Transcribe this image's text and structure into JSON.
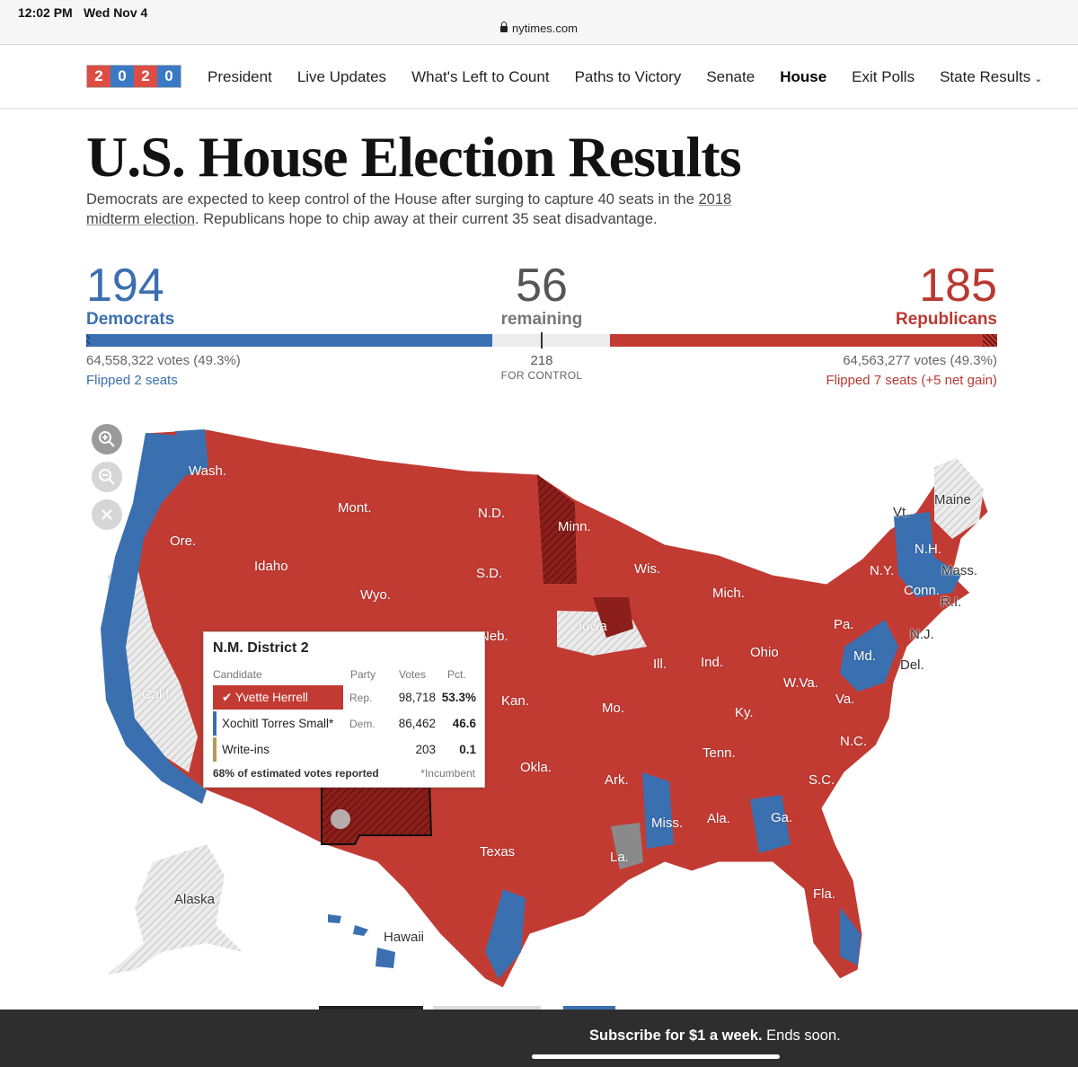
{
  "status_bar": {
    "time": "12:02 PM",
    "date": "Wed Nov 4",
    "url": "nytimes.com"
  },
  "nav": {
    "logo_digits": [
      "2",
      "0",
      "2",
      "0"
    ],
    "links": [
      "President",
      "Live Updates",
      "What's Left to Count",
      "Paths to Victory",
      "Senate",
      "House",
      "Exit Polls",
      "State Results"
    ],
    "active": "House"
  },
  "header": {
    "title": "U.S. House Election Results",
    "dek_1": "Democrats are expected to keep control of the House after surging to capture 40 seats in the ",
    "dek_link": "2018 midterm election",
    "dek_2": ". Republicans hope to chip away at their current 35 seat disadvantage."
  },
  "scoreboard": {
    "dem_seats": "194",
    "dem_label": "Democrats",
    "dem_votes": "64,558,322 votes (49.3%)",
    "dem_flipped": "Flipped 2 seats",
    "remaining": "56",
    "remaining_label": "remaining",
    "control_number": "218",
    "control_label": "FOR CONTROL",
    "rep_seats": "185",
    "rep_label": "Republicans",
    "rep_votes": "64,563,277 votes (49.3%)",
    "rep_flipped": "Flipped 7 seats (+5 net gain)",
    "total_seats": 435
  },
  "colors": {
    "dem": "#3a6fb0",
    "rep": "#c23b33",
    "uncalled": "#e2e2e2"
  },
  "map": {
    "labels": [
      "Wash.",
      "Ore.",
      "Calif.",
      "Idaho",
      "Mont.",
      "Wyo.",
      "N.D.",
      "S.D.",
      "Neb.",
      "Kan.",
      "Okla.",
      "Texas",
      "Minn.",
      "Iowa",
      "Mo.",
      "Ark.",
      "La.",
      "Wis.",
      "Ill.",
      "Mich.",
      "Ind.",
      "Ohio",
      "Ky.",
      "Tenn.",
      "Miss.",
      "Ala.",
      "Ga.",
      "Fla.",
      "S.C.",
      "N.C.",
      "Va.",
      "W.Va.",
      "Pa.",
      "N.Y.",
      "Vt.",
      "N.H.",
      "Maine",
      "Mass.",
      "R.I.",
      "Conn.",
      "N.J.",
      "Del.",
      "Md.",
      "Alaska",
      "Hawaii"
    ]
  },
  "tooltip": {
    "title": "N.M. District 2",
    "col_candidate": "Candidate",
    "col_party": "Party",
    "col_votes": "Votes",
    "col_pct": "Pct.",
    "rows": [
      {
        "name": "Yvette Herrell",
        "party": "Rep.",
        "votes": "98,718",
        "pct": "53.3%"
      },
      {
        "name": "Xochitl Torres Small*",
        "party": "Dem.",
        "votes": "86,462",
        "pct": "46.6"
      },
      {
        "name": "Write-ins",
        "party": "",
        "votes": "203",
        "pct": "0.1"
      }
    ],
    "reported": "68% of estimated votes reported",
    "incumbent_note": "*Incumbent"
  },
  "banner": {
    "bold": "Subscribe for $1 a week.",
    "rest": " Ends soon."
  }
}
